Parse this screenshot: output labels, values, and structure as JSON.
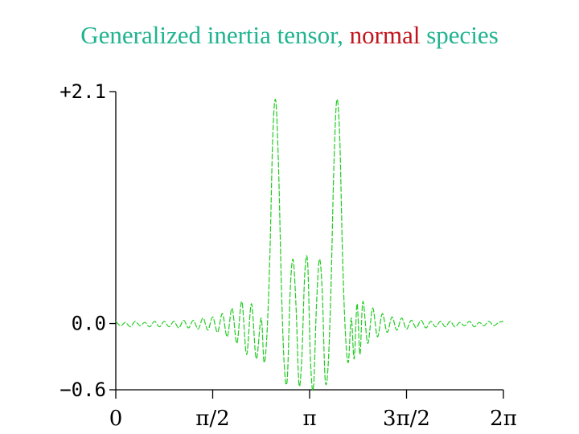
{
  "chart_data": {
    "type": "line",
    "title_parts": [
      {
        "text": "Generalized inertia tensor, ",
        "highlight": false
      },
      {
        "text": "normal",
        "highlight": true
      },
      {
        "text": " species",
        "highlight": false
      }
    ],
    "title_color": "#20b390",
    "title_highlight_color": "#c0141c",
    "series": [
      {
        "color": "#22cc22"
      }
    ],
    "xlim": [
      0,
      6.283185307
    ],
    "ylim": [
      -0.6,
      2.1
    ],
    "xticks": [
      {
        "value": 0,
        "label": "0"
      },
      {
        "value": 1.570796327,
        "label": "π/2"
      },
      {
        "value": 3.141592654,
        "label": "π"
      },
      {
        "value": 4.71238898,
        "label": "3π/2"
      },
      {
        "value": 6.283185307,
        "label": "2π"
      }
    ],
    "yticks": [
      {
        "value": 2.1,
        "label": "+2.1"
      },
      {
        "value": 0.0,
        "label": "0.0"
      },
      {
        "value": -0.6,
        "label": "−0.6"
      }
    ],
    "grid": false,
    "x": [
      0.0,
      0.079,
      0.157,
      0.236,
      0.314,
      0.393,
      0.471,
      0.55,
      0.628,
      0.707,
      0.785,
      0.864,
      0.942,
      1.021,
      1.1,
      1.178,
      1.257,
      1.335,
      1.414,
      1.492,
      1.571,
      1.649,
      1.728,
      1.806,
      1.885,
      1.963,
      2.042,
      2.12,
      2.199,
      2.277,
      2.356,
      2.403,
      2.45,
      2.497,
      2.545,
      2.592,
      2.639,
      2.686,
      2.733,
      2.78,
      2.827,
      2.874,
      2.922,
      2.969,
      3.016,
      3.063,
      3.11,
      3.157,
      3.204,
      3.252,
      3.299,
      3.346,
      3.393,
      3.44,
      3.487,
      3.534,
      3.581,
      3.629,
      3.676,
      3.723,
      3.77,
      3.817,
      3.864,
      3.911,
      3.958,
      4.006,
      4.084,
      4.163,
      4.241,
      4.32,
      4.398,
      4.477,
      4.555,
      4.634,
      4.712,
      4.791,
      4.869,
      4.948,
      5.027,
      5.105,
      5.184,
      5.262,
      5.341,
      5.419,
      5.498,
      5.576,
      5.655,
      5.733,
      5.812,
      5.89,
      5.969,
      6.048,
      6.126,
      6.205,
      6.283
    ],
    "y": [
      0.02,
      -0.02,
      0.01,
      -0.03,
      0.02,
      -0.02,
      0.01,
      -0.03,
      0.02,
      -0.03,
      0.02,
      -0.03,
      0.02,
      -0.04,
      0.03,
      -0.04,
      0.03,
      -0.05,
      0.05,
      -0.06,
      0.06,
      -0.08,
      0.09,
      -0.12,
      0.14,
      -0.18,
      0.2,
      -0.28,
      0.18,
      -0.32,
      0.05,
      -0.35,
      -0.1,
      0.6,
      1.7,
      2.02,
      1.4,
      0.3,
      -0.4,
      -0.5,
      0.3,
      0.58,
      0.15,
      -0.55,
      -0.3,
      0.45,
      0.55,
      -0.35,
      -0.58,
      0.15,
      0.58,
      0.3,
      -0.5,
      -0.4,
      0.3,
      1.4,
      2.02,
      1.7,
      0.6,
      -0.1,
      -0.35,
      0.05,
      -0.32,
      0.18,
      -0.28,
      0.2,
      -0.18,
      0.14,
      -0.12,
      0.09,
      -0.08,
      0.06,
      -0.06,
      0.05,
      -0.05,
      0.03,
      -0.04,
      0.03,
      -0.04,
      0.02,
      -0.03,
      0.02,
      -0.03,
      0.02,
      -0.03,
      0.01,
      -0.02,
      0.02,
      -0.03,
      0.01,
      -0.02,
      0.02,
      -0.02,
      0.01,
      0.02
    ]
  }
}
